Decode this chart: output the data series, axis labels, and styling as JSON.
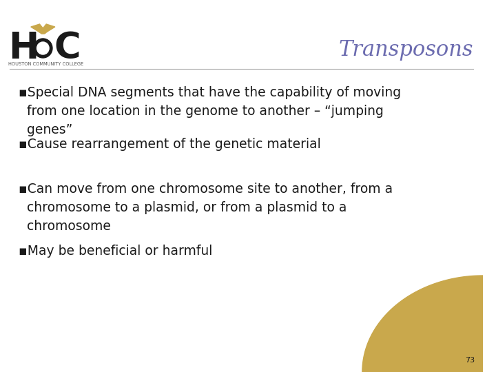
{
  "title": "Transposons",
  "title_color": "#6B6BAF",
  "title_fontsize": 22,
  "background_color": "#FFFFFF",
  "slide_number": "73",
  "header_line_color": "#AAAAAA",
  "bullet_color": "#1a1a1a",
  "bullet_fontsize": 13.5,
  "bullets": [
    "▪Special DNA segments that have the capability of moving\n  from one location in the genome to another – “jumping\n  genes”",
    "▪Cause rearrangement of the genetic material",
    "▪Can move from one chromosome site to another, from a\n  chromosome to a plasmid, or from a plasmid to a\n  chromosome",
    "▪May be beneficial or harmful"
  ],
  "logo_color": "#1a1a1a",
  "gold_color": "#C9A84C",
  "logo_text": "HOUSTON COMMUNITY COLLEGE"
}
